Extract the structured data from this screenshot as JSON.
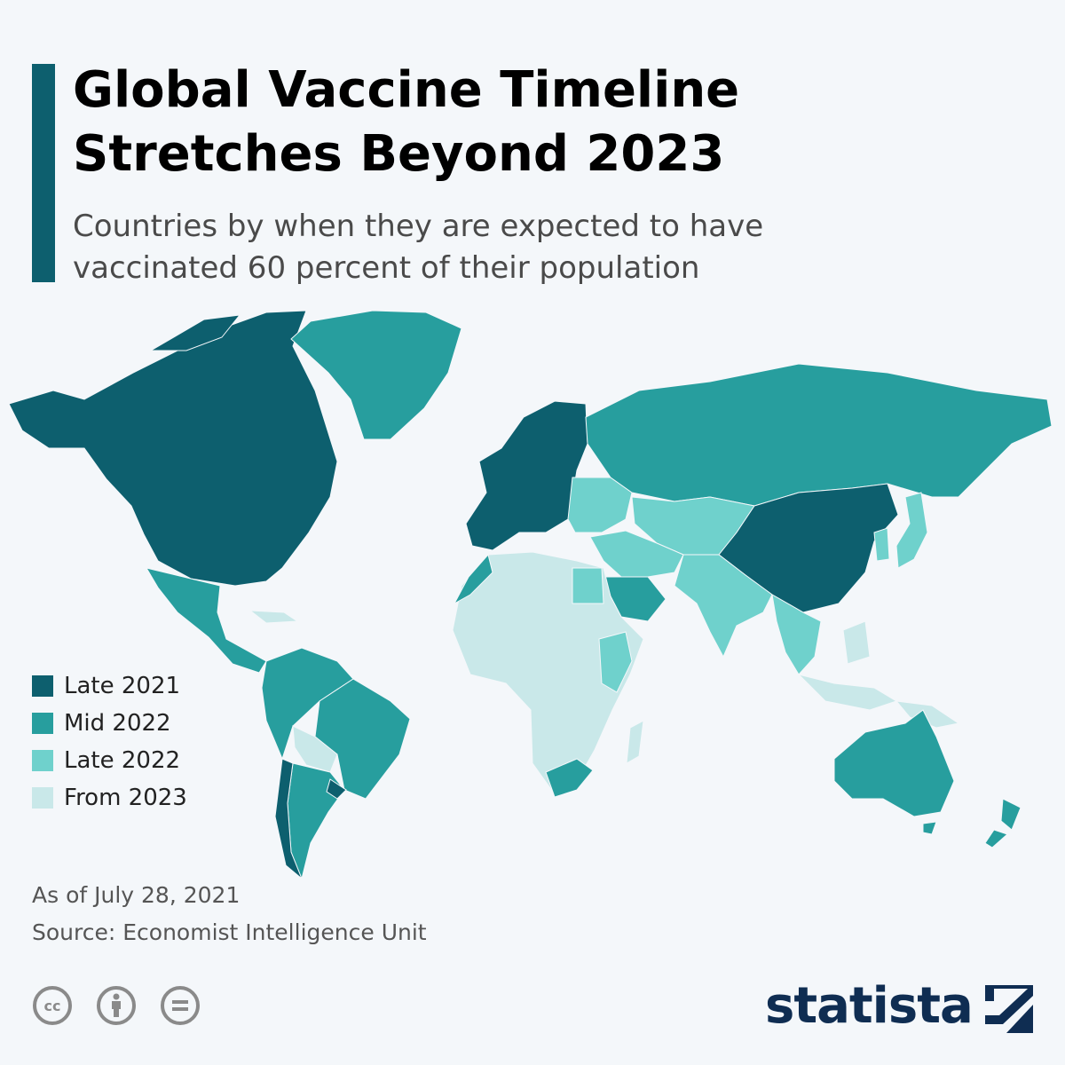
{
  "title_lines": [
    "Global Vaccine Timeline",
    "Stretches Beyond 2023"
  ],
  "subtitle_lines": [
    "Countries by when they are expected to have",
    "vaccinated 60 percent of their population"
  ],
  "legend": [
    {
      "label": "Late 2021",
      "color": "#0d5f6e"
    },
    {
      "label": "Mid 2022",
      "color": "#279e9e"
    },
    {
      "label": "Late 2022",
      "color": "#6fd1cc"
    },
    {
      "label": "From 2023",
      "color": "#c9e8e9"
    }
  ],
  "notes": {
    "date": "As of July 28, 2021",
    "source": "Source: Economist Intelligence Unit"
  },
  "license_icons": [
    "cc-icon",
    "attribution-icon",
    "no-derivatives-icon"
  ],
  "brand": {
    "name": "statista",
    "color": "#0f2d52"
  },
  "regions": [
    {
      "name": "North America (Canada, USA)",
      "category": "Late 2021"
    },
    {
      "name": "Mexico and Central America",
      "category": "Mid 2022"
    },
    {
      "name": "Caribbean",
      "category": "From 2023"
    },
    {
      "name": "Greenland",
      "category": "Mid 2022"
    },
    {
      "name": "Northern South America",
      "category": "Mid 2022"
    },
    {
      "name": "Brazil",
      "category": "Mid 2022"
    },
    {
      "name": "Bolivia and Paraguay",
      "category": "From 2023"
    },
    {
      "name": "Argentina",
      "category": "Mid 2022"
    },
    {
      "name": "Chile",
      "category": "Late 2021"
    },
    {
      "name": "Uruguay",
      "category": "Late 2021"
    },
    {
      "name": "Western Europe",
      "category": "Late 2021"
    },
    {
      "name": "Eastern Europe",
      "category": "Late 2022"
    },
    {
      "name": "Russia",
      "category": "Mid 2022"
    },
    {
      "name": "Central Asia",
      "category": "Late 2022"
    },
    {
      "name": "Middle East",
      "category": "Late 2022"
    },
    {
      "name": "Saudi Arabia and Gulf",
      "category": "Mid 2022"
    },
    {
      "name": "China and Mongolia",
      "category": "Late 2021"
    },
    {
      "name": "Japan and Korea",
      "category": "Late 2022"
    },
    {
      "name": "India and South Asia",
      "category": "Late 2022"
    },
    {
      "name": "Southeast Asia",
      "category": "Late 2022"
    },
    {
      "name": "Indonesia",
      "category": "From 2023"
    },
    {
      "name": "Africa",
      "category": "From 2023"
    },
    {
      "name": "Morocco",
      "category": "Mid 2022"
    },
    {
      "name": "Egypt",
      "category": "Late 2022"
    },
    {
      "name": "East Africa highlands",
      "category": "Late 2022"
    },
    {
      "name": "South Africa",
      "category": "Mid 2022"
    },
    {
      "name": "Australia",
      "category": "Mid 2022"
    },
    {
      "name": "New Zealand",
      "category": "Mid 2022"
    },
    {
      "name": "Papua New Guinea",
      "category": "From 2023"
    }
  ]
}
